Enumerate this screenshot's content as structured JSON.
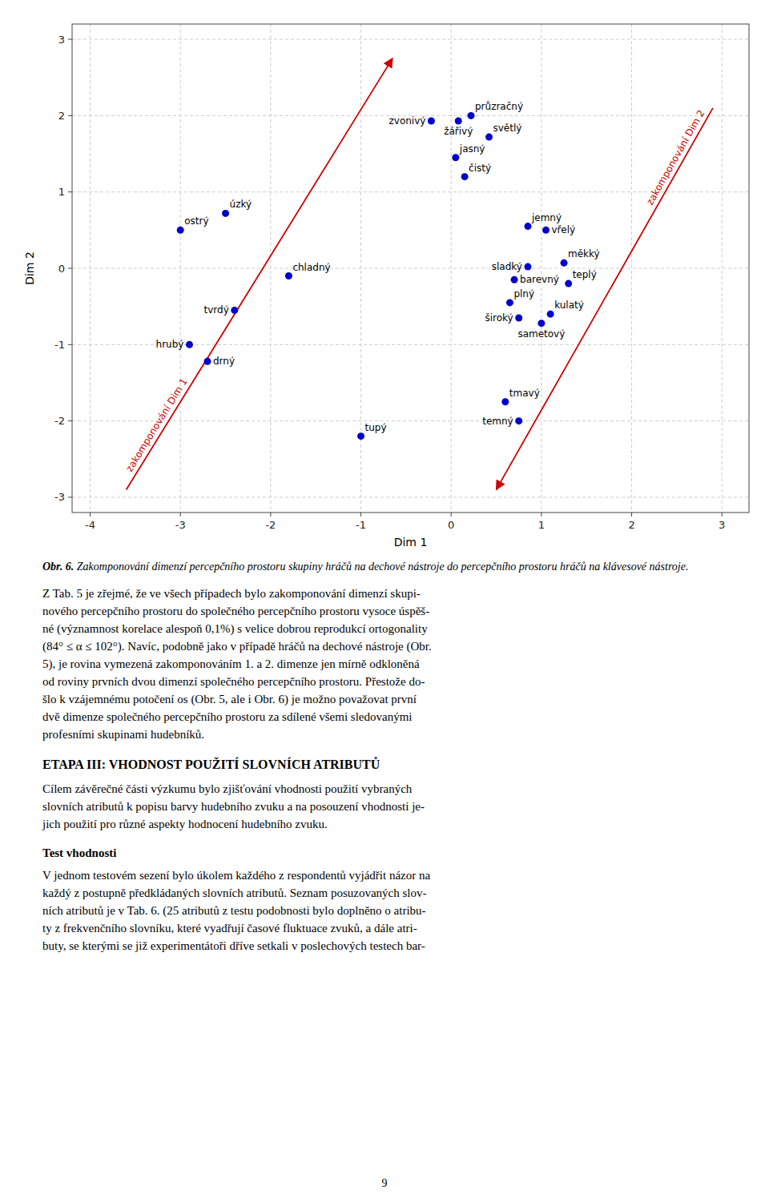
{
  "chart_data": {
    "type": "scatter",
    "xlabel": "Dim 1",
    "ylabel": "Dim 2",
    "x": [
      -3.0,
      -2.5,
      -2.9,
      -2.7,
      -2.4,
      -1.8,
      -1.0,
      -0.22,
      0.08,
      0.22,
      0.42,
      0.05,
      0.15,
      0.85,
      1.05,
      0.85,
      1.25,
      0.7,
      1.3,
      0.65,
      0.75,
      1.1,
      1.0,
      0.6,
      0.75
    ],
    "y": [
      0.5,
      0.72,
      -1.0,
      -1.22,
      -0.55,
      -0.1,
      -2.2,
      1.93,
      1.93,
      2.0,
      1.72,
      1.45,
      1.2,
      0.55,
      0.5,
      0.02,
      0.07,
      -0.15,
      -0.2,
      -0.45,
      -0.65,
      -0.6,
      -0.72,
      -1.75,
      -2.0
    ],
    "labels": [
      "ostrý",
      "úzký",
      "hrubý",
      "drný",
      "tvrdý",
      "chladný",
      "tupý",
      "zvonivý",
      "žářivý",
      "průzračný",
      "světlý",
      "jasný",
      "čistý",
      "jemný",
      "vřelý",
      "sladký",
      "měkký",
      "barevný",
      "teplý",
      "plný",
      "široký",
      "kulatý",
      "sametový",
      "tmavý",
      "temný"
    ],
    "color": "#0000CC",
    "xlim": [
      -4.2,
      3.3
    ],
    "ylim": [
      -3.2,
      3.2
    ],
    "xticks": [
      -4,
      -3,
      -2,
      -1,
      0,
      1,
      2,
      3
    ],
    "yticks": [
      -3,
      -2,
      -1,
      0,
      1,
      2,
      3
    ],
    "grid": true,
    "annotations": [
      {
        "type": "arrow",
        "start": [
          -3.6,
          -2.9
        ],
        "end": [
          -0.65,
          2.75
        ],
        "label": "zakomponování Dim 1",
        "color": "#CC0000"
      },
      {
        "type": "arrow",
        "start": [
          2.9,
          2.1
        ],
        "end": [
          0.5,
          -2.9
        ],
        "label": "zakomponování Dim 2",
        "color": "#CC0000"
      }
    ]
  },
  "caption_bold": "Obr. 6.",
  "caption_italic": " Zakomponování dimenzí percepčního prostoru skupiny hráčů na dechové nástroje do percepčního prostoru hráčů na klávesové nástroje.",
  "body_text_lines": [
    "Z Tab. 5 je zřejmé, že ve všech případech bylo zakomponování dimenzí skupi-",
    "nového percepčního prostoru do společného percepčního prostoru vysoce úspěš-",
    "né (významnost korelace alespoň 0,1%) s velice dobrou reprodukcí ortogonality",
    "(84° ≤ α ≤ 102°). Navíc, podobně jako v případě hráčů na dechové nástroje (Obr.",
    "5), je rovina vymezená zakomponováním 1. a 2. dimenze jen mírně odkloněná",
    "od roviny prvních dvou dimenzí společného percepčního prostoru. Přestože do-",
    "šlo k vzájemnému potočení os (Obr. 5, ale i Obr. 6) je možno považovat první",
    "dvě dimenze společného percepčního prostoru za sdílené všemi sledovanými",
    "profesními skupinami hudebníků."
  ],
  "section_title": "ETAPA III: VHODNOST POUŽITÍ SLOVNÍCH ATRIBUTŮ",
  "section_body_lines": [
    "Cílem závěrečné části výzkumu bylo zjišťování vhodnosti použití vybraných",
    "slovních atributů k popisu barvy hudebního zvuku a na posouzení vhodnosti je-",
    "jich použití pro různé aspekty hodnocení hudebního zvuku."
  ],
  "subsection_title": "Test vhodnosti",
  "subsection_body_lines": [
    "V jednom testovém sezení bylo úkolem každého z respondentů vyjádřit názor na",
    "každý z postupně předkládaných slovních atributů. Seznam posuzovaných slov-",
    "ních atributů je v Tab. 6. (25 atributů z testu podobnosti bylo doplněno o atribu-",
    "ty z frekvenčního slovníku, které vyadřují časové fluktuace zvuků, a dále atri-",
    "buty, se kterými se již experimentátoři dříve setkali v poslechových testech bar-"
  ],
  "page_number": "9"
}
